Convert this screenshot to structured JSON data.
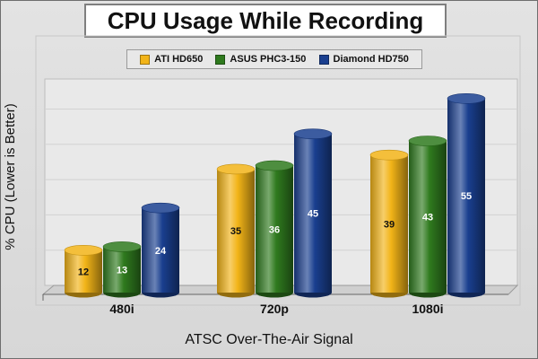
{
  "chart_data": {
    "type": "bar",
    "title": "CPU Usage While Recording",
    "xlabel": "ATSC Over-The-Air Signal",
    "ylabel": "% CPU (Lower is Better)",
    "categories": [
      "480i",
      "720p",
      "1080i"
    ],
    "series": [
      {
        "name": "ATI HD650",
        "values": [
          12,
          35,
          39
        ],
        "color": "#f2b418"
      },
      {
        "name": "ASUS PHC3-150",
        "values": [
          13,
          36,
          43
        ],
        "color": "#2f7a1e"
      },
      {
        "name": "Diamond HD750",
        "values": [
          24,
          45,
          55
        ],
        "color": "#1a3f8f"
      }
    ],
    "ylim": [
      0,
      60
    ],
    "grid": true,
    "legend_position": "top"
  }
}
